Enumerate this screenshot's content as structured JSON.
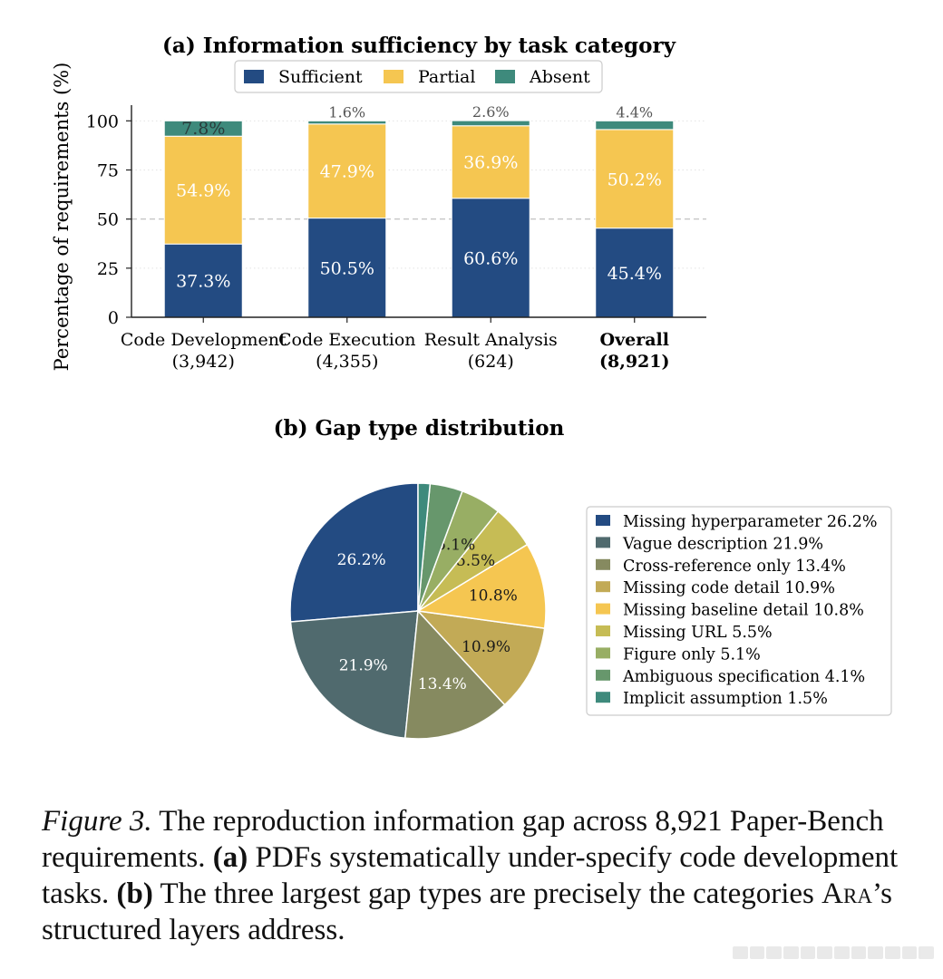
{
  "chart_data": [
    {
      "type": "bar",
      "stacked": true,
      "title": "(a) Information sufficiency by task category",
      "ylabel": "Percentage of requirements (%)",
      "ylim": [
        0,
        108
      ],
      "yticks": [
        "0",
        "25",
        "50",
        "75",
        "100"
      ],
      "reference_line": 50,
      "legend_position": "top",
      "categories": [
        {
          "name": "Code Development",
          "count": "(3,942)",
          "bold": false
        },
        {
          "name": "Code Execution",
          "count": "(4,355)",
          "bold": false
        },
        {
          "name": "Result Analysis",
          "count": "(624)",
          "bold": false
        },
        {
          "name": "Overall",
          "count": "(8,921)",
          "bold": true
        }
      ],
      "series": [
        {
          "name": "Sufficient",
          "color": "#234b82",
          "values": [
            37.3,
            50.5,
            60.6,
            45.4
          ],
          "labels": [
            "37.3%",
            "50.5%",
            "60.6%",
            "45.4%"
          ]
        },
        {
          "name": "Partial",
          "color": "#f5c651",
          "values": [
            54.9,
            47.9,
            36.9,
            50.2
          ],
          "labels": [
            "54.9%",
            "47.9%",
            "36.9%",
            "50.2%"
          ]
        },
        {
          "name": "Absent",
          "color": "#3e8a7c",
          "values": [
            7.8,
            1.6,
            2.6,
            4.4
          ],
          "labels": [
            "7.8%",
            "1.6%",
            "2.6%",
            "4.4%"
          ]
        }
      ]
    },
    {
      "type": "pie",
      "title": "(b) Gap type distribution",
      "slices": [
        {
          "name": "Missing hyperparameter",
          "value": 26.2,
          "label": "26.2%",
          "color": "#234b82"
        },
        {
          "name": "Vague description",
          "value": 21.9,
          "label": "21.9%",
          "color": "#506a6e"
        },
        {
          "name": "Cross-reference only",
          "value": 13.4,
          "label": "13.4%",
          "color": "#868a60"
        },
        {
          "name": "Missing code detail",
          "value": 10.9,
          "label": "10.9%",
          "color": "#c2aa56"
        },
        {
          "name": "Missing baseline detail",
          "value": 10.8,
          "label": "10.8%",
          "color": "#f5c651"
        },
        {
          "name": "Missing URL",
          "value": 5.5,
          "label": "5.5%",
          "color": "#c6bc55"
        },
        {
          "name": "Figure only",
          "value": 5.1,
          "label": "5.1%",
          "color": "#98ae64"
        },
        {
          "name": "Ambiguous specification",
          "value": 4.1,
          "label": "",
          "color": "#67976c"
        },
        {
          "name": "Implicit assumption",
          "value": 1.5,
          "label": "",
          "color": "#3e8a7c"
        }
      ],
      "legend_position": "right"
    }
  ],
  "caption": {
    "figure_label": "Figure 3.",
    "part1": " The reproduction information gap across 8,921 Paper-Bench requirements. ",
    "a_marker": "(a)",
    "part2": " PDFs systematically under-specify code development tasks. ",
    "b_marker": "(b)",
    "part3": " The three largest gap types are precisely the categories ",
    "ara": "Ara",
    "part4": "’s structured layers address."
  }
}
